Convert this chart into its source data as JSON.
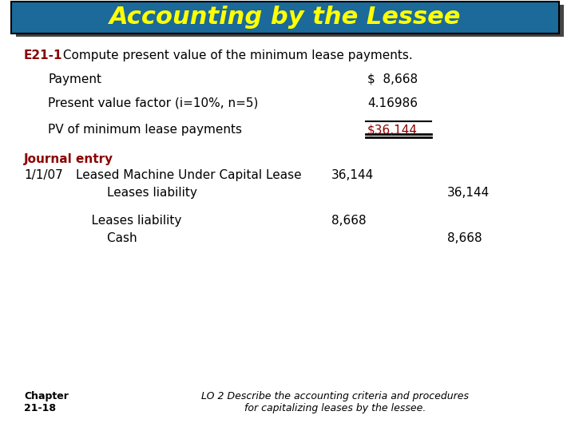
{
  "title": "Accounting by the Lessee",
  "title_color": "#FFFF00",
  "title_bg_color": "#1B6A9A",
  "title_shadow_color": "#444444",
  "bg_color": "#FFFFFF",
  "subtitle_label": "E21-1",
  "subtitle_label_color": "#8B0000",
  "subtitle_text": " Compute present value of the minimum lease payments.",
  "subtitle_color": "#000000",
  "rows": [
    {
      "label": "Payment",
      "value": "$  8,668",
      "label_color": "#000000",
      "value_color": "#000000"
    },
    {
      "label": "Present value factor (i=10%, n=5)",
      "value": "4.16986",
      "label_color": "#000000",
      "value_color": "#000000"
    },
    {
      "label": "PV of minimum lease payments",
      "value": "$36,144",
      "label_color": "#000000",
      "value_color": "#8B0000"
    }
  ],
  "journal_label": "Journal entry",
  "journal_label_color": "#8B0000",
  "journal_entries": [
    {
      "date": "1/1/07",
      "account": "Leased Machine Under Capital Lease",
      "debit": "36,144",
      "credit": ""
    },
    {
      "date": "",
      "account": "        Leases liability",
      "debit": "",
      "credit": "36,144"
    },
    {
      "date": "",
      "account": "",
      "debit": "",
      "credit": ""
    },
    {
      "date": "",
      "account": "    Leases liability",
      "debit": "8,668",
      "credit": ""
    },
    {
      "date": "",
      "account": "        Cash",
      "debit": "",
      "credit": "8,668"
    }
  ],
  "footer_left": "Chapter\n21-18",
  "footer_right": "LO 2 Describe the accounting criteria and procedures\nfor capitalizing leases by the lessee.",
  "footer_color": "#000000",
  "underline_color": "#000000",
  "double_underline_color": "#000000"
}
